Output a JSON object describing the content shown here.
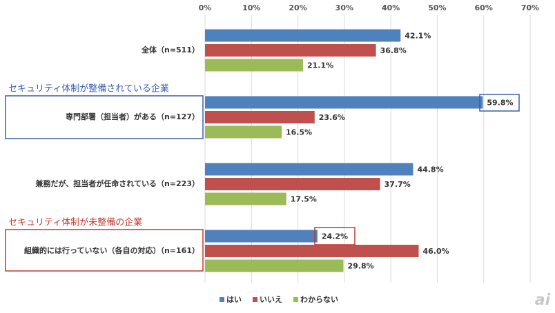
{
  "chart_data": {
    "type": "barh",
    "categories": [
      "全体（n=511）",
      "専門部署（担当者）がある（n=127）",
      "兼務だが、担当者が任命されている（n=223）",
      "組織的には行っていない（各自の対応）（n=161）"
    ],
    "series": [
      {
        "name": "はい",
        "color": "#4f81bd",
        "values": [
          42.1,
          59.8,
          44.8,
          24.2
        ],
        "value_labels": [
          "42.1%",
          "59.8%",
          "44.8%",
          "24.2%"
        ]
      },
      {
        "name": "いいえ",
        "color": "#c0504d",
        "values": [
          36.8,
          23.6,
          37.7,
          46.0
        ],
        "value_labels": [
          "36.8%",
          "23.6%",
          "37.7%",
          "46.0%"
        ]
      },
      {
        "name": "わからない",
        "color": "#9bbb59",
        "values": [
          21.1,
          16.5,
          17.5,
          29.8
        ],
        "value_labels": [
          "21.1%",
          "16.5%",
          "17.5%",
          "29.8%"
        ]
      }
    ],
    "xlim": [
      0,
      70
    ],
    "xticks": [
      {
        "value": 0,
        "label": "0%"
      },
      {
        "value": 10,
        "label": "10%"
      },
      {
        "value": 20,
        "label": "20%"
      },
      {
        "value": 30,
        "label": "30%"
      },
      {
        "value": 40,
        "label": "40%"
      },
      {
        "value": 50,
        "label": "50%"
      },
      {
        "value": 60,
        "label": "60%"
      },
      {
        "value": 70,
        "label": "70%"
      }
    ],
    "grid": true,
    "legend": "bottom",
    "annotations": [
      {
        "text": "セキュリティ体制が整備されている企業",
        "color": "#3a5dae"
      },
      {
        "text": "セキュリティ体制が未整備の企業",
        "color": "#c0392b"
      }
    ]
  },
  "logo": "ai"
}
